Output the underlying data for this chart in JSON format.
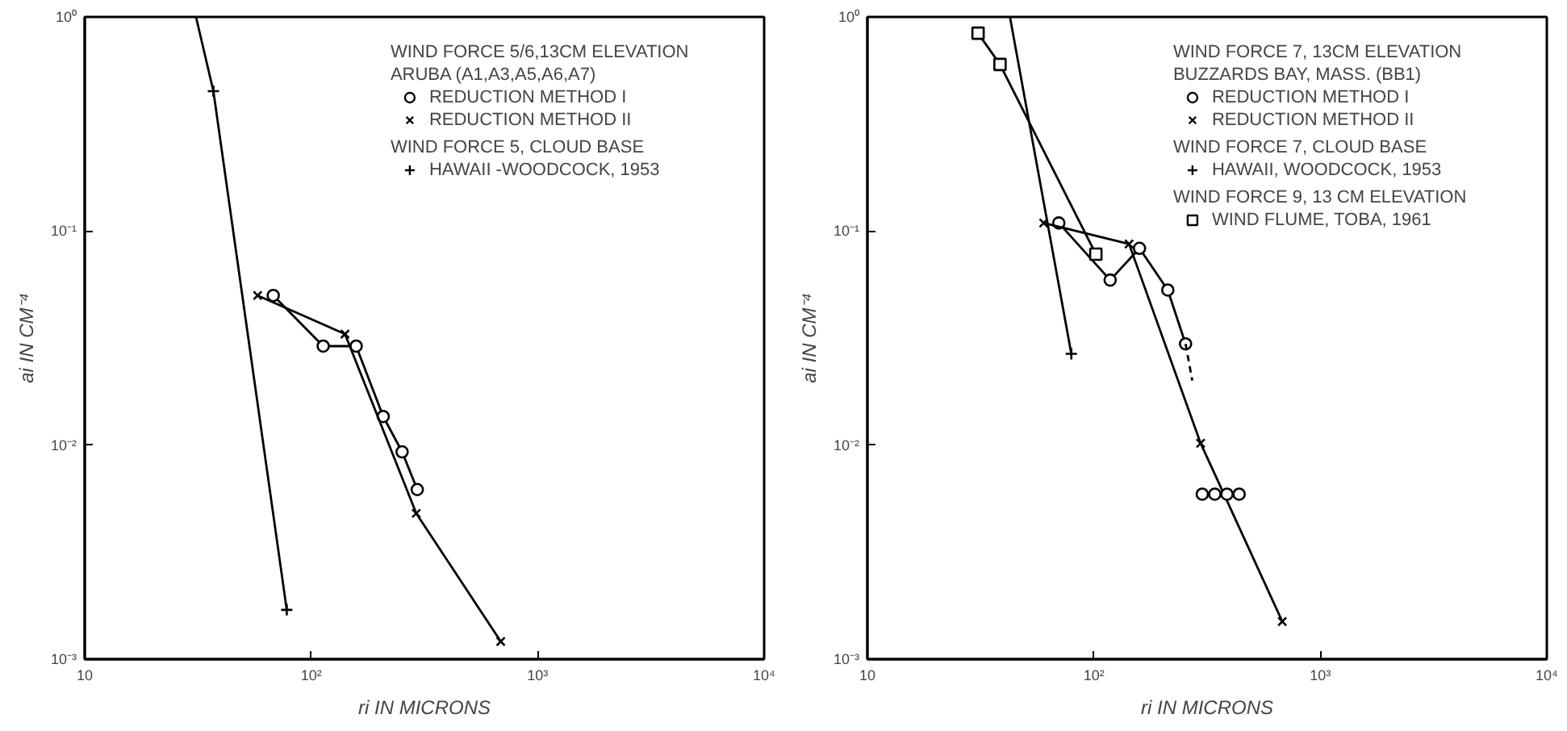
{
  "chart_data": [
    {
      "type": "line",
      "xlabel": "ri IN MICRONS",
      "ylabel": "ai IN CM⁻⁴",
      "log": "xy",
      "grid": false,
      "legend": "top right",
      "xlim": [
        10,
        10000
      ],
      "ylim": [
        0.001,
        1
      ],
      "xticks": [
        10,
        {
          "value": 100,
          "label": "10²"
        },
        {
          "value": 1000,
          "label": "10³"
        },
        {
          "value": 10000,
          "label": "10⁴"
        }
      ],
      "yticks": [
        {
          "value": 0.001,
          "label": "10⁻³"
        },
        {
          "value": 0.01,
          "label": "10⁻²"
        },
        {
          "value": 0.1,
          "label": "10⁻¹"
        },
        {
          "value": 1,
          "label": "10⁰"
        }
      ],
      "annotations": [
        "WIND FORCE 5/6,13CM ELEVATION\nARUBA (A1,A3,A5,A6,A7)",
        "WIND FORCE 5, CLOUD BASE"
      ],
      "series": [
        {
          "name": "REDUCTION METHOD I",
          "color": "#000000",
          "marker": "circle",
          "x": [
            68,
            113,
            158,
            208,
            252,
            294
          ],
          "values": [
            0.05,
            0.029,
            0.029,
            0.0136,
            0.0093,
            0.0062
          ]
        },
        {
          "name": "REDUCTION METHOD II",
          "color": "#000000",
          "marker": "cross",
          "x": [
            58,
            141,
            291,
            687
          ],
          "values": [
            0.05,
            0.033,
            0.0048,
            0.00121
          ]
        },
        {
          "name": "HAWAII -WOODCOCK, 1953",
          "color": "#000000",
          "marker": "plus",
          "x": [
            37,
            78
          ],
          "values": [
            0.45,
            0.0017
          ]
        },
        {
          "color": "#000000",
          "marker": "none",
          "x": [
            31,
            37
          ],
          "values": [
            1.0,
            0.45
          ]
        }
      ]
    },
    {
      "type": "line",
      "xlabel": "ri IN MICRONS",
      "ylabel": "ai IN CM⁻⁴",
      "log": "xy",
      "grid": false,
      "legend": "top right",
      "xlim": [
        10,
        10000
      ],
      "ylim": [
        0.001,
        1
      ],
      "xticks": [
        10,
        {
          "value": 100,
          "label": "10²"
        },
        {
          "value": 1000,
          "label": "10³"
        },
        {
          "value": 10000,
          "label": "10⁴"
        }
      ],
      "yticks": [
        {
          "value": 0.001,
          "label": "10⁻³"
        },
        {
          "value": 0.01,
          "label": "10⁻²"
        },
        {
          "value": 0.1,
          "label": "10⁻¹"
        },
        {
          "value": 1,
          "label": "10⁰"
        }
      ],
      "annotations": [
        "WIND FORCE 7, 13CM ELEVATION\nBUZZARDS BAY, MASS. (BB1)",
        "WIND FORCE 7, CLOUD BASE",
        "WIND FORCE 9, 13 CM ELEVATION"
      ],
      "series": [
        {
          "name": "REDUCTION METHOD I",
          "color": "#000000",
          "marker": "circle",
          "x": [
            70,
            118,
            159,
            212,
            254
          ],
          "values": [
            0.109,
            0.059,
            0.083,
            0.053,
            0.0297
          ]
        },
        {
          "name": "REDUCTION METHOD II",
          "color": "#000000",
          "marker": "cross",
          "x": [
            60,
            143,
            296,
            679
          ],
          "values": [
            0.109,
            0.087,
            0.0102,
            0.0015
          ]
        },
        {
          "name": "HAWAII, WOODCOCK, 1953",
          "color": "#000000",
          "marker": "plus",
          "x": [
            79.5
          ],
          "values": [
            0.0267
          ]
        },
        {
          "name": "WIND FLUME, TOBA, 1961",
          "color": "#000000",
          "marker": "square",
          "x": [
            30.8,
            38.5,
            102
          ],
          "values": [
            0.84,
            0.6,
            0.078
          ]
        },
        {
          "color": "#000000",
          "marker": "none",
          "x": [
            42.6,
            79.5
          ],
          "values": [
            1.0,
            0.0267
          ]
        },
        {
          "color": "#000000",
          "marker": "none",
          "line_style": "dashed",
          "x": [
            254,
            272
          ],
          "values": [
            0.0297,
            0.02
          ]
        },
        {
          "type": "scatter",
          "color": "#000000",
          "marker": "circle",
          "x": [
            301,
            342,
            387,
            438
          ],
          "values": [
            0.0059,
            0.0059,
            0.0059,
            0.0059
          ]
        }
      ]
    }
  ]
}
